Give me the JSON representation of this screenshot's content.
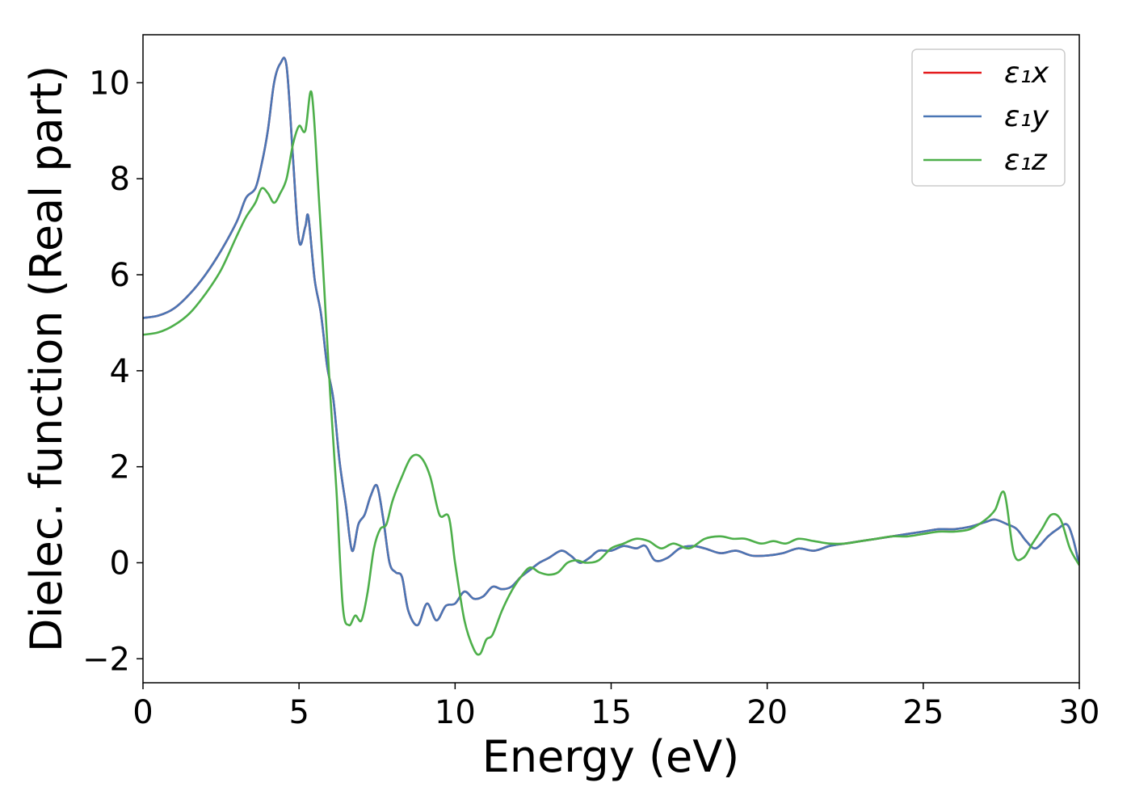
{
  "chart_data": {
    "type": "line",
    "title": "",
    "xlabel": "Energy (eV)",
    "ylabel": "Dielec. function (Real part)",
    "xlim": [
      0,
      30
    ],
    "ylim": [
      -2.5,
      11
    ],
    "xticks": [
      0,
      5,
      10,
      15,
      20,
      25,
      30
    ],
    "xtick_labels": [
      "0",
      "5",
      "10",
      "15",
      "20",
      "25",
      "30"
    ],
    "yticks": [
      -2,
      0,
      2,
      4,
      6,
      8,
      10
    ],
    "ytick_labels": [
      "−2",
      "0",
      "2",
      "4",
      "6",
      "8",
      "10"
    ],
    "grid": false,
    "legend_position": "top-right",
    "series": [
      {
        "name": "ε₁x",
        "color": "#e41a1c",
        "x": [
          0,
          0.5,
          1,
          1.5,
          2,
          2.5,
          3,
          3.3,
          3.6,
          3.8,
          4,
          4.2,
          4.4,
          4.6,
          4.8,
          5,
          5.2,
          5.3,
          5.5,
          5.7,
          5.9,
          6.1,
          6.3,
          6.5,
          6.7,
          6.9,
          7.1,
          7.3,
          7.5,
          7.7,
          7.9,
          8.1,
          8.3,
          8.5,
          8.8,
          9.1,
          9.4,
          9.7,
          10,
          10.3,
          10.6,
          10.9,
          11.2,
          11.5,
          11.8,
          12.1,
          12.4,
          12.7,
          13,
          13.4,
          13.7,
          14,
          14.3,
          14.6,
          15,
          15.4,
          15.8,
          16.1,
          16.4,
          16.8,
          17.2,
          17.6,
          18,
          18.5,
          19,
          19.5,
          20,
          20.5,
          21,
          21.5,
          22,
          22.5,
          23,
          23.5,
          24,
          24.5,
          25,
          25.5,
          26,
          26.5,
          27,
          27.3,
          27.7,
          28,
          28.3,
          28.6,
          29,
          29.3,
          29.6,
          29.8,
          30
        ],
        "y": [
          5.1,
          5.15,
          5.3,
          5.6,
          6.0,
          6.5,
          7.1,
          7.6,
          7.8,
          8.3,
          9.0,
          10.0,
          10.4,
          10.35,
          8.5,
          6.7,
          7.0,
          7.2,
          5.9,
          5.2,
          4.1,
          3.4,
          2.1,
          1.2,
          0.25,
          0.8,
          1.0,
          1.4,
          1.6,
          0.9,
          0.0,
          -0.2,
          -0.3,
          -1.0,
          -1.3,
          -0.85,
          -1.2,
          -0.9,
          -0.85,
          -0.6,
          -0.75,
          -0.7,
          -0.5,
          -0.55,
          -0.5,
          -0.3,
          -0.15,
          0.0,
          0.1,
          0.25,
          0.15,
          0.0,
          0.1,
          0.25,
          0.25,
          0.35,
          0.3,
          0.35,
          0.05,
          0.1,
          0.3,
          0.35,
          0.3,
          0.2,
          0.25,
          0.15,
          0.15,
          0.2,
          0.3,
          0.25,
          0.35,
          0.4,
          0.45,
          0.5,
          0.55,
          0.6,
          0.65,
          0.7,
          0.7,
          0.75,
          0.85,
          0.9,
          0.8,
          0.7,
          0.45,
          0.3,
          0.55,
          0.7,
          0.8,
          0.5,
          -0.05
        ]
      },
      {
        "name": "ε₁y",
        "color": "#4a76b5",
        "x": [
          0,
          0.5,
          1,
          1.5,
          2,
          2.5,
          3,
          3.3,
          3.6,
          3.8,
          4,
          4.2,
          4.4,
          4.6,
          4.8,
          5,
          5.2,
          5.3,
          5.5,
          5.7,
          5.9,
          6.1,
          6.3,
          6.5,
          6.7,
          6.9,
          7.1,
          7.3,
          7.5,
          7.7,
          7.9,
          8.1,
          8.3,
          8.5,
          8.8,
          9.1,
          9.4,
          9.7,
          10,
          10.3,
          10.6,
          10.9,
          11.2,
          11.5,
          11.8,
          12.1,
          12.4,
          12.7,
          13,
          13.4,
          13.7,
          14,
          14.3,
          14.6,
          15,
          15.4,
          15.8,
          16.1,
          16.4,
          16.8,
          17.2,
          17.6,
          18,
          18.5,
          19,
          19.5,
          20,
          20.5,
          21,
          21.5,
          22,
          22.5,
          23,
          23.5,
          24,
          24.5,
          25,
          25.5,
          26,
          26.5,
          27,
          27.3,
          27.7,
          28,
          28.3,
          28.6,
          29,
          29.3,
          29.6,
          29.8,
          30
        ],
        "y": [
          5.1,
          5.15,
          5.3,
          5.6,
          6.0,
          6.5,
          7.1,
          7.6,
          7.8,
          8.3,
          9.0,
          10.0,
          10.4,
          10.35,
          8.5,
          6.7,
          7.0,
          7.2,
          5.9,
          5.2,
          4.1,
          3.4,
          2.1,
          1.2,
          0.25,
          0.8,
          1.0,
          1.4,
          1.6,
          0.9,
          0.0,
          -0.2,
          -0.3,
          -1.0,
          -1.3,
          -0.85,
          -1.2,
          -0.9,
          -0.85,
          -0.6,
          -0.75,
          -0.7,
          -0.5,
          -0.55,
          -0.5,
          -0.3,
          -0.15,
          0.0,
          0.1,
          0.25,
          0.15,
          0.0,
          0.1,
          0.25,
          0.25,
          0.35,
          0.3,
          0.35,
          0.05,
          0.1,
          0.3,
          0.35,
          0.3,
          0.2,
          0.25,
          0.15,
          0.15,
          0.2,
          0.3,
          0.25,
          0.35,
          0.4,
          0.45,
          0.5,
          0.55,
          0.6,
          0.65,
          0.7,
          0.7,
          0.75,
          0.85,
          0.9,
          0.8,
          0.7,
          0.45,
          0.3,
          0.55,
          0.7,
          0.8,
          0.5,
          -0.05
        ]
      },
      {
        "name": "ε₁z",
        "color": "#4daf4a",
        "x": [
          0,
          0.5,
          1,
          1.5,
          2,
          2.5,
          3,
          3.3,
          3.6,
          3.8,
          4,
          4.2,
          4.4,
          4.6,
          4.8,
          5,
          5.2,
          5.4,
          5.6,
          5.8,
          6,
          6.2,
          6.4,
          6.6,
          6.8,
          7,
          7.2,
          7.4,
          7.6,
          7.8,
          8,
          8.3,
          8.6,
          8.9,
          9.2,
          9.5,
          9.8,
          10,
          10.3,
          10.6,
          10.8,
          11,
          11.2,
          11.5,
          11.8,
          12.1,
          12.4,
          12.7,
          13,
          13.3,
          13.6,
          13.9,
          14.2,
          14.6,
          15,
          15.4,
          15.8,
          16.2,
          16.6,
          17,
          17.5,
          18,
          18.5,
          18.9,
          19.3,
          19.8,
          20.2,
          20.6,
          21,
          21.5,
          22,
          22.5,
          23,
          23.5,
          24,
          24.5,
          25,
          25.5,
          26,
          26.5,
          27,
          27.3,
          27.6,
          27.9,
          28.2,
          28.5,
          28.8,
          29.1,
          29.4,
          29.7,
          30
        ],
        "y": [
          4.75,
          4.8,
          4.95,
          5.2,
          5.6,
          6.1,
          6.8,
          7.2,
          7.5,
          7.8,
          7.7,
          7.5,
          7.7,
          8.0,
          8.7,
          9.1,
          9.0,
          9.8,
          8.0,
          5.8,
          3.5,
          1.5,
          -0.9,
          -1.3,
          -1.1,
          -1.2,
          -0.6,
          0.3,
          0.7,
          0.8,
          1.3,
          1.8,
          2.2,
          2.2,
          1.8,
          1.0,
          0.95,
          0.0,
          -1.2,
          -1.8,
          -1.9,
          -1.6,
          -1.5,
          -1.0,
          -0.6,
          -0.3,
          -0.1,
          -0.2,
          -0.25,
          -0.2,
          0.0,
          0.05,
          0.0,
          0.05,
          0.3,
          0.4,
          0.5,
          0.45,
          0.3,
          0.4,
          0.3,
          0.5,
          0.55,
          0.5,
          0.5,
          0.4,
          0.45,
          0.4,
          0.5,
          0.45,
          0.4,
          0.4,
          0.45,
          0.5,
          0.55,
          0.55,
          0.6,
          0.65,
          0.65,
          0.7,
          0.9,
          1.1,
          1.45,
          0.2,
          0.1,
          0.4,
          0.7,
          1.0,
          0.9,
          0.3,
          -0.05
        ]
      }
    ]
  }
}
